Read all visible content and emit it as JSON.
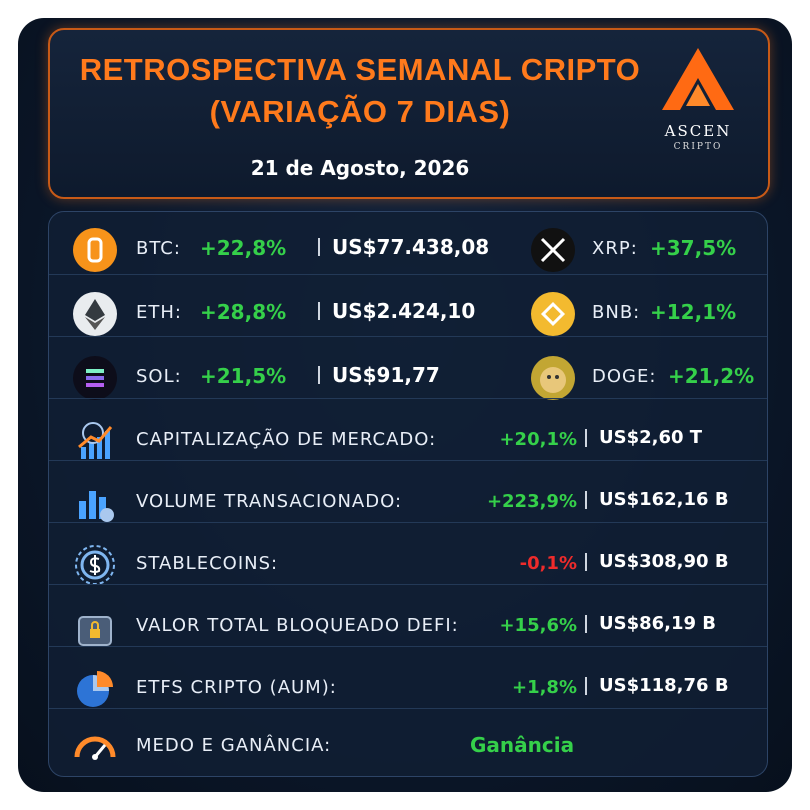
{
  "header": {
    "title_lines": [
      "RETROSPECTIVA SEMANAL CRIPTO",
      "(VARIAÇÃO 7 DIAS)"
    ],
    "date": "21 de Agosto, 2026"
  },
  "logo": {
    "name": "ASCEN",
    "tagline": "CRIPTO"
  },
  "coins": [
    {
      "label": "BTC:",
      "change": "+22,8%",
      "price": "US$77.438,08"
    },
    {
      "label": "ETH:",
      "change": "+28,8%",
      "price": "US$2.424,10"
    },
    {
      "label": "SOL:",
      "change": "+21,5%",
      "price": "US$91,77"
    }
  ],
  "side_coins": [
    {
      "label": "XRP:",
      "change": "+37,5%"
    },
    {
      "label": "BNB:",
      "change": "+12,1%"
    },
    {
      "label": "DOGE:",
      "change": "+21,2%"
    }
  ],
  "metrics": [
    {
      "label": "CAPITALIZAÇÃO DE MERCADO:",
      "change": "+20,1%",
      "value": "US$2,60 T"
    },
    {
      "label": "VOLUME TRANSACIONADO:",
      "change": "+223,9%",
      "value": "US$162,16 B"
    },
    {
      "label": "STABLECOINS:",
      "change": "-0,1%",
      "value": "US$308,90 B"
    },
    {
      "label": "VALOR TOTAL BLOQUEADO DEFI:",
      "change": "+15,6%",
      "value": "US$86,19 B"
    },
    {
      "label": "ETFS CRIPTO (AUM):",
      "change": "+1,8%",
      "value": "US$118,76 B"
    }
  ],
  "sentiment": {
    "label": "MEDO E GANÂNCIA:",
    "value": "Ganância"
  }
}
